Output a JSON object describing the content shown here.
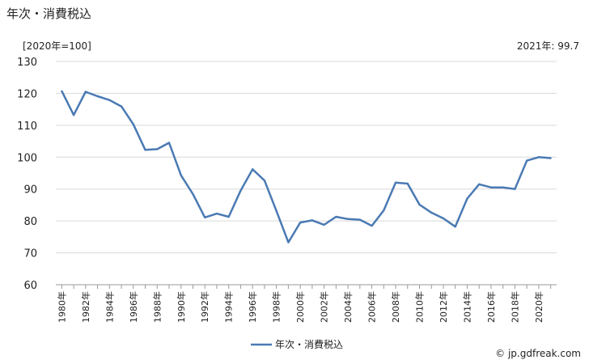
{
  "header": {
    "title": "年次・消費税込",
    "unit_note": "[2020年=100]",
    "latest_value": "2021年: 99.7"
  },
  "footer": {
    "credit": "© jp.gdfreak.com"
  },
  "colors": {
    "series": "#4a7ab3",
    "grid": "#d9d9d9"
  },
  "chart_data": {
    "type": "line",
    "title": "年次・消費税込",
    "xlabel": "",
    "ylabel": "",
    "ylim": [
      60,
      130
    ],
    "yticks": [
      60,
      70,
      80,
      90,
      100,
      110,
      120,
      130
    ],
    "grid": "horizontal",
    "legend_position": "bottom-center",
    "x": [
      1980,
      1981,
      1982,
      1983,
      1984,
      1985,
      1986,
      1987,
      1988,
      1989,
      1990,
      1991,
      1992,
      1993,
      1994,
      1995,
      1996,
      1997,
      1998,
      1999,
      2000,
      2001,
      2002,
      2003,
      2004,
      2005,
      2006,
      2007,
      2008,
      2009,
      2010,
      2011,
      2012,
      2013,
      2014,
      2015,
      2016,
      2017,
      2018,
      2019,
      2020,
      2021
    ],
    "xtick_labels": [
      "1980年",
      "1982年",
      "1984年",
      "1986年",
      "1988年",
      "1990年",
      "1992年",
      "1994年",
      "1996年",
      "1998年",
      "2000年",
      "2002年",
      "2004年",
      "2006年",
      "2008年",
      "2010年",
      "2012年",
      "2014年",
      "2016年",
      "2018年",
      "2020年"
    ],
    "series": [
      {
        "name": "年次・消費税込",
        "values": [
          120.7,
          113.2,
          120.5,
          119.1,
          117.9,
          115.9,
          110.3,
          102.3,
          102.5,
          104.5,
          94.3,
          88.4,
          81.1,
          82.3,
          81.3,
          89.5,
          96.2,
          92.7,
          83.1,
          73.3,
          79.5,
          80.2,
          78.8,
          81.3,
          80.6,
          80.4,
          78.5,
          83.3,
          92.0,
          91.7,
          85.1,
          82.6,
          80.8,
          78.2,
          87.0,
          91.5,
          90.5,
          90.5,
          90.0,
          98.9,
          100.0,
          99.7
        ]
      }
    ]
  }
}
